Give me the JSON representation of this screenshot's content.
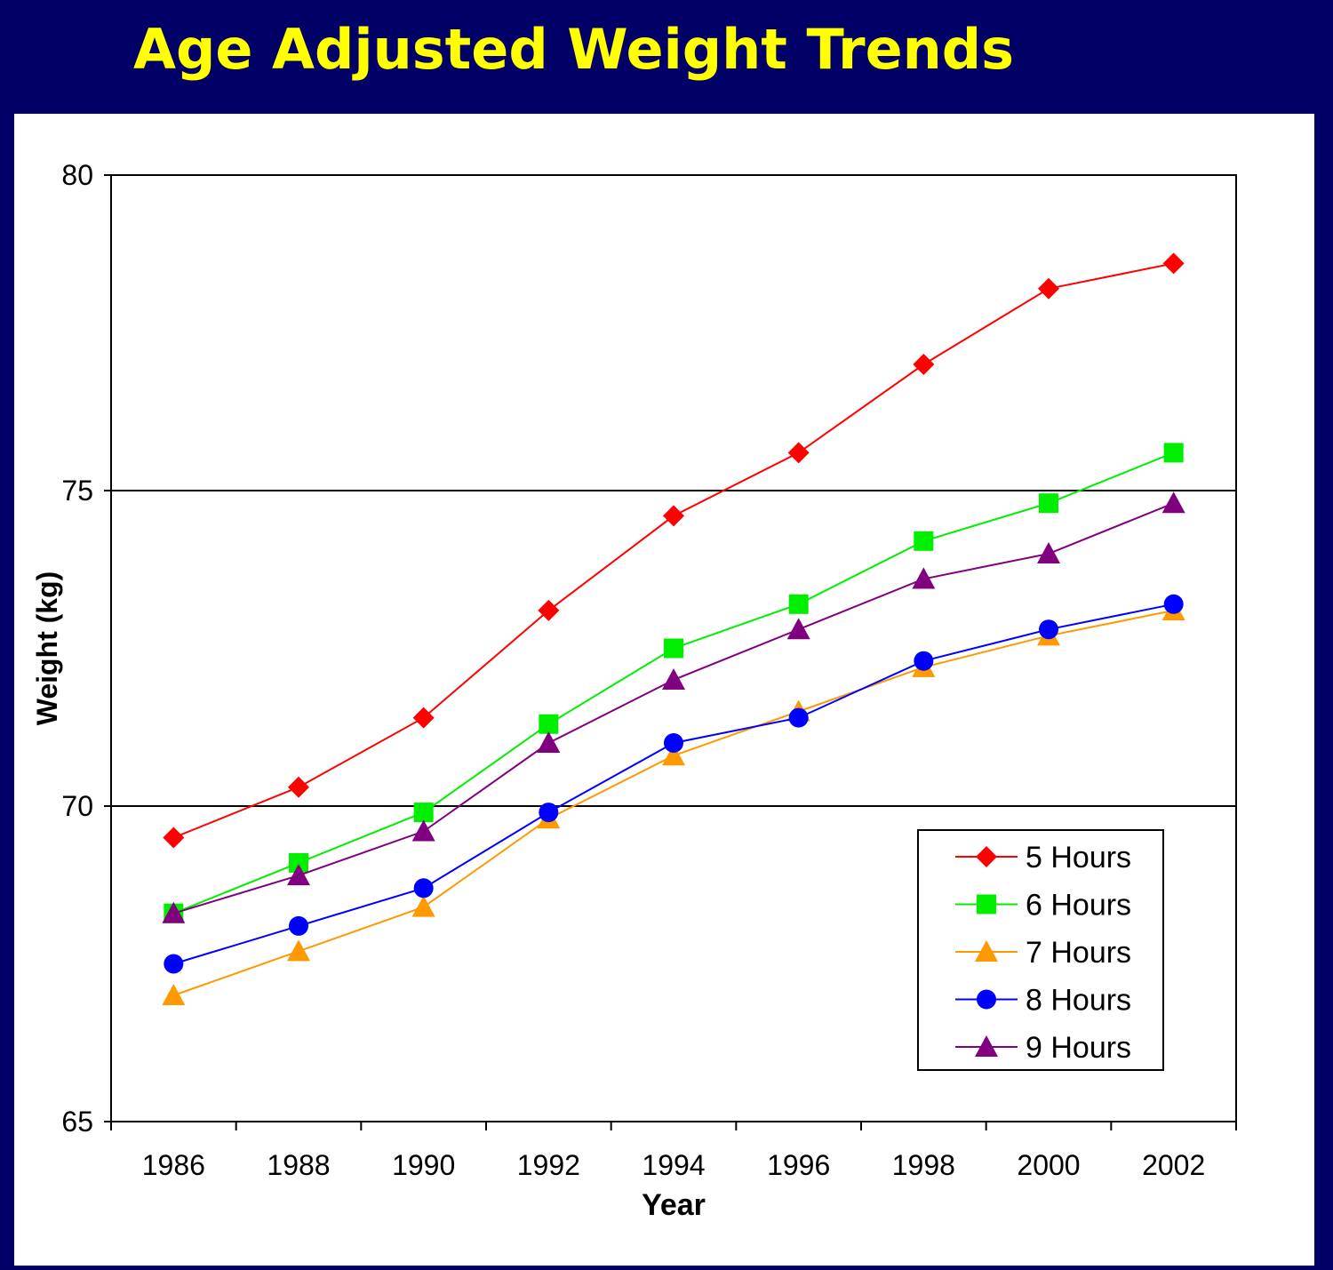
{
  "slide": {
    "title": "Age Adjusted Weight Trends"
  },
  "chart_data": {
    "type": "line",
    "title": "",
    "xlabel": "Year",
    "ylabel": "Weight (kg)",
    "x": [
      1986,
      1988,
      1990,
      1992,
      1994,
      1996,
      1998,
      2000,
      2002
    ],
    "ylim": [
      65,
      80
    ],
    "yticks": [
      65,
      70,
      75,
      80
    ],
    "grid": "horizontal at 70 and 75",
    "legend_position": "bottom-right",
    "series": [
      {
        "name": "5 Hours",
        "color": "#ff0000",
        "marker": "diamond",
        "values": [
          69.5,
          70.3,
          71.4,
          73.1,
          74.6,
          75.6,
          77.0,
          78.2,
          78.6
        ]
      },
      {
        "name": "6 Hours",
        "color": "#00ee00",
        "marker": "square",
        "values": [
          68.3,
          69.1,
          69.9,
          71.3,
          72.5,
          73.2,
          74.2,
          74.8,
          75.6
        ]
      },
      {
        "name": "7 Hours",
        "color": "#ff9900",
        "marker": "triangle",
        "values": [
          67.0,
          67.7,
          68.4,
          69.8,
          70.8,
          71.5,
          72.2,
          72.7,
          73.1
        ]
      },
      {
        "name": "8 Hours",
        "color": "#0000ff",
        "marker": "circle",
        "values": [
          67.5,
          68.1,
          68.7,
          69.9,
          71.0,
          71.4,
          72.3,
          72.8,
          73.2
        ]
      },
      {
        "name": "9 Hours",
        "color": "#800080",
        "marker": "triangle",
        "values": [
          68.3,
          68.9,
          69.6,
          71.0,
          72.0,
          72.8,
          73.6,
          74.0,
          74.8
        ]
      }
    ]
  }
}
